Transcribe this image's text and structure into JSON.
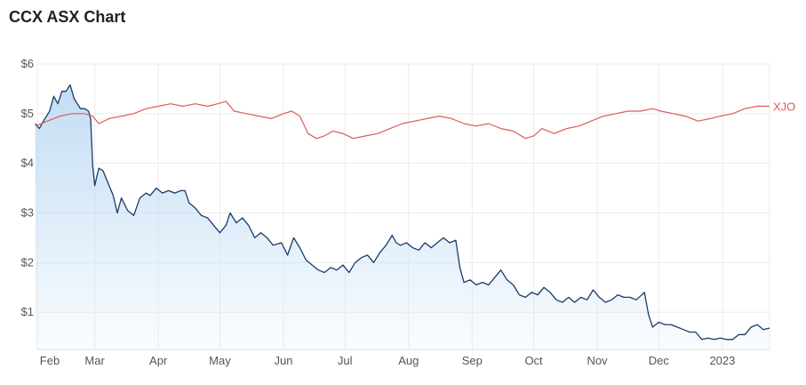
{
  "header": {
    "title": "CCX ASX Chart"
  },
  "chart_data": {
    "type": "area",
    "title": "CCX ASX Chart",
    "xlabel": "",
    "ylabel": "",
    "ylim": [
      0.25,
      6
    ],
    "y_ticks": [
      {
        "value": 6,
        "label": "$6"
      },
      {
        "value": 5,
        "label": "$5"
      },
      {
        "value": 4,
        "label": "$4"
      },
      {
        "value": 3,
        "label": "$3"
      },
      {
        "value": 2,
        "label": "$2"
      },
      {
        "value": 1,
        "label": "$1"
      }
    ],
    "x_range": [
      "2022-02-01",
      "2023-01-24"
    ],
    "x_ticks": [
      {
        "date": "2022-02-01",
        "label": "Feb"
      },
      {
        "date": "2022-03-01",
        "label": "Mar"
      },
      {
        "date": "2022-04-01",
        "label": "Apr"
      },
      {
        "date": "2022-05-01",
        "label": "May"
      },
      {
        "date": "2022-06-01",
        "label": "Jun"
      },
      {
        "date": "2022-07-01",
        "label": "Jul"
      },
      {
        "date": "2022-08-01",
        "label": "Aug"
      },
      {
        "date": "2022-09-01",
        "label": "Sep"
      },
      {
        "date": "2022-10-01",
        "label": "Oct"
      },
      {
        "date": "2022-11-01",
        "label": "Nov"
      },
      {
        "date": "2022-12-01",
        "label": "Dec"
      },
      {
        "date": "2023-01-01",
        "label": "2023"
      }
    ],
    "grid": true,
    "colors": {
      "ccx_line": "#1b3a6b",
      "ccx_fill": "#bfdcf3",
      "xjo_line": "#e05a5a",
      "grid": "#ebebeb"
    },
    "series": [
      {
        "name": "",
        "style": "area",
        "points": [
          [
            "2022-01-31",
            4.8
          ],
          [
            "2022-02-02",
            4.7
          ],
          [
            "2022-02-04",
            4.85
          ],
          [
            "2022-02-07",
            5.05
          ],
          [
            "2022-02-09",
            5.35
          ],
          [
            "2022-02-11",
            5.2
          ],
          [
            "2022-02-13",
            5.45
          ],
          [
            "2022-02-15",
            5.45
          ],
          [
            "2022-02-17",
            5.58
          ],
          [
            "2022-02-19",
            5.3
          ],
          [
            "2022-02-22",
            5.1
          ],
          [
            "2022-02-24",
            5.1
          ],
          [
            "2022-02-26",
            5.05
          ],
          [
            "2022-02-27",
            4.9
          ],
          [
            "2022-02-28",
            3.95
          ],
          [
            "2022-03-01",
            3.55
          ],
          [
            "2022-03-03",
            3.9
          ],
          [
            "2022-03-05",
            3.85
          ],
          [
            "2022-03-08",
            3.55
          ],
          [
            "2022-03-10",
            3.35
          ],
          [
            "2022-03-12",
            3.0
          ],
          [
            "2022-03-14",
            3.3
          ],
          [
            "2022-03-17",
            3.05
          ],
          [
            "2022-03-20",
            2.95
          ],
          [
            "2022-03-23",
            3.3
          ],
          [
            "2022-03-26",
            3.4
          ],
          [
            "2022-03-28",
            3.35
          ],
          [
            "2022-03-31",
            3.5
          ],
          [
            "2022-04-03",
            3.4
          ],
          [
            "2022-04-06",
            3.45
          ],
          [
            "2022-04-09",
            3.4
          ],
          [
            "2022-04-12",
            3.45
          ],
          [
            "2022-04-14",
            3.45
          ],
          [
            "2022-04-16",
            3.2
          ],
          [
            "2022-04-19",
            3.1
          ],
          [
            "2022-04-22",
            2.95
          ],
          [
            "2022-04-25",
            2.9
          ],
          [
            "2022-04-28",
            2.75
          ],
          [
            "2022-05-01",
            2.6
          ],
          [
            "2022-05-04",
            2.75
          ],
          [
            "2022-05-06",
            3.0
          ],
          [
            "2022-05-09",
            2.8
          ],
          [
            "2022-05-12",
            2.9
          ],
          [
            "2022-05-15",
            2.75
          ],
          [
            "2022-05-18",
            2.5
          ],
          [
            "2022-05-21",
            2.6
          ],
          [
            "2022-05-24",
            2.5
          ],
          [
            "2022-05-27",
            2.35
          ],
          [
            "2022-05-31",
            2.4
          ],
          [
            "2022-06-03",
            2.15
          ],
          [
            "2022-06-06",
            2.5
          ],
          [
            "2022-06-09",
            2.3
          ],
          [
            "2022-06-12",
            2.05
          ],
          [
            "2022-06-15",
            1.95
          ],
          [
            "2022-06-18",
            1.85
          ],
          [
            "2022-06-21",
            1.8
          ],
          [
            "2022-06-24",
            1.9
          ],
          [
            "2022-06-27",
            1.85
          ],
          [
            "2022-06-30",
            1.95
          ],
          [
            "2022-07-03",
            1.8
          ],
          [
            "2022-07-06",
            2.0
          ],
          [
            "2022-07-09",
            2.1
          ],
          [
            "2022-07-12",
            2.15
          ],
          [
            "2022-07-15",
            2.0
          ],
          [
            "2022-07-18",
            2.2
          ],
          [
            "2022-07-21",
            2.35
          ],
          [
            "2022-07-24",
            2.55
          ],
          [
            "2022-07-26",
            2.4
          ],
          [
            "2022-07-28",
            2.35
          ],
          [
            "2022-07-31",
            2.4
          ],
          [
            "2022-08-03",
            2.3
          ],
          [
            "2022-08-06",
            2.25
          ],
          [
            "2022-08-09",
            2.4
          ],
          [
            "2022-08-12",
            2.3
          ],
          [
            "2022-08-15",
            2.4
          ],
          [
            "2022-08-18",
            2.5
          ],
          [
            "2022-08-21",
            2.4
          ],
          [
            "2022-08-24",
            2.45
          ],
          [
            "2022-08-26",
            1.9
          ],
          [
            "2022-08-28",
            1.6
          ],
          [
            "2022-08-31",
            1.65
          ],
          [
            "2022-09-03",
            1.55
          ],
          [
            "2022-09-06",
            1.6
          ],
          [
            "2022-09-09",
            1.55
          ],
          [
            "2022-09-12",
            1.7
          ],
          [
            "2022-09-15",
            1.85
          ],
          [
            "2022-09-18",
            1.65
          ],
          [
            "2022-09-21",
            1.55
          ],
          [
            "2022-09-24",
            1.35
          ],
          [
            "2022-09-27",
            1.3
          ],
          [
            "2022-09-30",
            1.4
          ],
          [
            "2022-10-03",
            1.35
          ],
          [
            "2022-10-06",
            1.5
          ],
          [
            "2022-10-09",
            1.4
          ],
          [
            "2022-10-12",
            1.25
          ],
          [
            "2022-10-15",
            1.2
          ],
          [
            "2022-10-18",
            1.3
          ],
          [
            "2022-10-21",
            1.2
          ],
          [
            "2022-10-24",
            1.3
          ],
          [
            "2022-10-27",
            1.25
          ],
          [
            "2022-10-30",
            1.45
          ],
          [
            "2022-11-02",
            1.3
          ],
          [
            "2022-11-05",
            1.2
          ],
          [
            "2022-11-08",
            1.25
          ],
          [
            "2022-11-11",
            1.35
          ],
          [
            "2022-11-14",
            1.3
          ],
          [
            "2022-11-17",
            1.3
          ],
          [
            "2022-11-20",
            1.25
          ],
          [
            "2022-11-24",
            1.4
          ],
          [
            "2022-11-26",
            0.95
          ],
          [
            "2022-11-28",
            0.7
          ],
          [
            "2022-12-01",
            0.8
          ],
          [
            "2022-12-04",
            0.75
          ],
          [
            "2022-12-07",
            0.75
          ],
          [
            "2022-12-10",
            0.7
          ],
          [
            "2022-12-13",
            0.65
          ],
          [
            "2022-12-16",
            0.6
          ],
          [
            "2022-12-19",
            0.6
          ],
          [
            "2022-12-22",
            0.45
          ],
          [
            "2022-12-25",
            0.48
          ],
          [
            "2022-12-28",
            0.45
          ],
          [
            "2022-12-31",
            0.48
          ],
          [
            "2023-01-03",
            0.45
          ],
          [
            "2023-01-06",
            0.45
          ],
          [
            "2023-01-09",
            0.55
          ],
          [
            "2023-01-12",
            0.55
          ],
          [
            "2023-01-15",
            0.7
          ],
          [
            "2023-01-18",
            0.75
          ],
          [
            "2023-01-21",
            0.65
          ],
          [
            "2023-01-24",
            0.68
          ]
        ]
      },
      {
        "name": "XJO",
        "style": "line",
        "points": [
          [
            "2022-01-31",
            4.75
          ],
          [
            "2022-02-06",
            4.85
          ],
          [
            "2022-02-12",
            4.95
          ],
          [
            "2022-02-18",
            5.0
          ],
          [
            "2022-02-24",
            5.0
          ],
          [
            "2022-02-28",
            4.95
          ],
          [
            "2022-03-03",
            4.8
          ],
          [
            "2022-03-08",
            4.9
          ],
          [
            "2022-03-14",
            4.95
          ],
          [
            "2022-03-20",
            5.0
          ],
          [
            "2022-03-26",
            5.1
          ],
          [
            "2022-04-01",
            5.15
          ],
          [
            "2022-04-07",
            5.2
          ],
          [
            "2022-04-13",
            5.15
          ],
          [
            "2022-04-19",
            5.2
          ],
          [
            "2022-04-25",
            5.15
          ],
          [
            "2022-04-30",
            5.2
          ],
          [
            "2022-05-04",
            5.25
          ],
          [
            "2022-05-08",
            5.05
          ],
          [
            "2022-05-14",
            5.0
          ],
          [
            "2022-05-20",
            4.95
          ],
          [
            "2022-05-26",
            4.9
          ],
          [
            "2022-06-01",
            5.0
          ],
          [
            "2022-06-05",
            5.05
          ],
          [
            "2022-06-09",
            4.95
          ],
          [
            "2022-06-13",
            4.6
          ],
          [
            "2022-06-17",
            4.5
          ],
          [
            "2022-06-21",
            4.55
          ],
          [
            "2022-06-25",
            4.65
          ],
          [
            "2022-06-30",
            4.6
          ],
          [
            "2022-07-05",
            4.5
          ],
          [
            "2022-07-11",
            4.55
          ],
          [
            "2022-07-17",
            4.6
          ],
          [
            "2022-07-23",
            4.7
          ],
          [
            "2022-07-29",
            4.8
          ],
          [
            "2022-08-04",
            4.85
          ],
          [
            "2022-08-10",
            4.9
          ],
          [
            "2022-08-16",
            4.95
          ],
          [
            "2022-08-22",
            4.9
          ],
          [
            "2022-08-28",
            4.8
          ],
          [
            "2022-09-03",
            4.75
          ],
          [
            "2022-09-09",
            4.8
          ],
          [
            "2022-09-15",
            4.7
          ],
          [
            "2022-09-21",
            4.65
          ],
          [
            "2022-09-27",
            4.5
          ],
          [
            "2022-10-01",
            4.55
          ],
          [
            "2022-10-05",
            4.7
          ],
          [
            "2022-10-11",
            4.6
          ],
          [
            "2022-10-17",
            4.7
          ],
          [
            "2022-10-23",
            4.75
          ],
          [
            "2022-10-29",
            4.85
          ],
          [
            "2022-11-04",
            4.95
          ],
          [
            "2022-11-10",
            5.0
          ],
          [
            "2022-11-16",
            5.05
          ],
          [
            "2022-11-22",
            5.05
          ],
          [
            "2022-11-28",
            5.1
          ],
          [
            "2022-12-02",
            5.05
          ],
          [
            "2022-12-08",
            5.0
          ],
          [
            "2022-12-14",
            4.95
          ],
          [
            "2022-12-20",
            4.85
          ],
          [
            "2022-12-26",
            4.9
          ],
          [
            "2022-12-31",
            4.95
          ],
          [
            "2023-01-06",
            5.0
          ],
          [
            "2023-01-12",
            5.1
          ],
          [
            "2023-01-18",
            5.15
          ],
          [
            "2023-01-24",
            5.15
          ]
        ]
      }
    ]
  }
}
